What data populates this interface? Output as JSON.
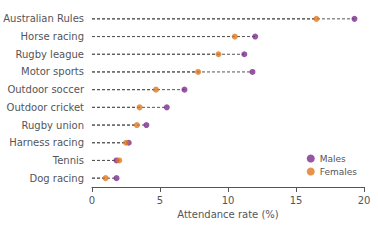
{
  "chart_data": {
    "type": "scatter",
    "orientation": "horizontal",
    "categories": [
      "Dog racing",
      "Tennis",
      "Harness racing",
      "Rugby union",
      "Outdoor cricket",
      "Outdoor soccer",
      "Motor sports",
      "Rugby league",
      "Horse racing",
      "Australian Rules"
    ],
    "series": [
      {
        "name": "Males",
        "color": "#7B2D8B",
        "marker": "circle",
        "values": [
          1.8,
          1.8,
          2.7,
          4.0,
          5.5,
          6.8,
          11.8,
          11.2,
          12.0,
          19.3
        ]
      },
      {
        "name": "Females",
        "color": "#E07820",
        "marker": "circle",
        "values": [
          1.0,
          2.0,
          2.5,
          3.3,
          3.5,
          4.7,
          7.8,
          9.3,
          10.5,
          16.5
        ]
      }
    ],
    "xlabel": "Attendance rate (%)",
    "xlim": [
      0,
      20
    ],
    "xticks": [
      0,
      5,
      10,
      15,
      20
    ],
    "grid": false,
    "legend": "lower right"
  }
}
